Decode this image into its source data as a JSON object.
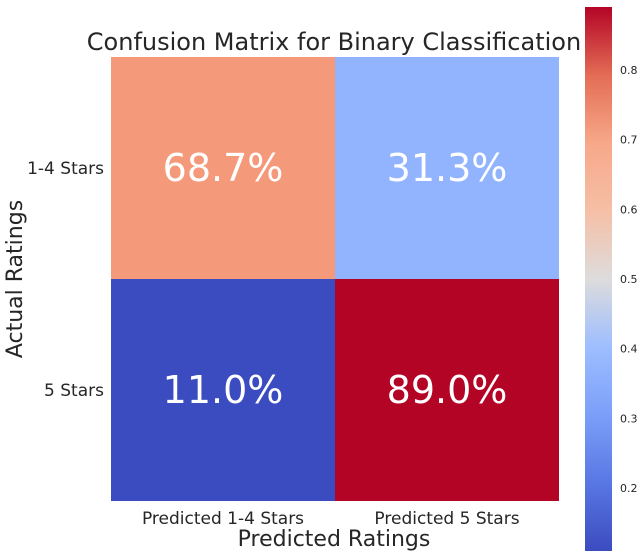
{
  "chart_data": {
    "type": "heatmap",
    "title": "Confusion Matrix for Binary Classification",
    "xlabel": "Predicted Ratings",
    "ylabel": "Actual Ratings",
    "x_categories": [
      "Predicted 1-4 Stars",
      "Predicted 5 Stars"
    ],
    "y_categories": [
      "1-4 Stars",
      "5 Stars"
    ],
    "values": [
      [
        0.687,
        0.313
      ],
      [
        0.11,
        0.89
      ]
    ],
    "cell_labels": [
      [
        "68.7%",
        "31.3%"
      ],
      [
        "11.0%",
        "89.0%"
      ]
    ],
    "colormap": "coolwarm",
    "colors": [
      [
        "#f49a7b",
        "#92b4fe"
      ],
      [
        "#3b4cc0",
        "#b40426"
      ]
    ],
    "colorbar": {
      "range": [
        0.11,
        0.89
      ],
      "ticks": [
        0.2,
        0.3,
        0.4,
        0.5,
        0.6,
        0.7,
        0.8
      ],
      "tick_labels": [
        "0.2",
        "0.3",
        "0.4",
        "0.5",
        "0.6",
        "0.7",
        "0.8"
      ]
    }
  }
}
